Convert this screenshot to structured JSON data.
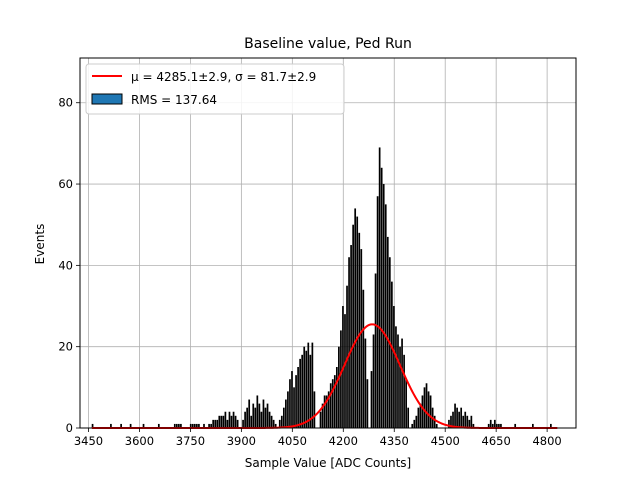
{
  "chart_data": {
    "type": "histogram",
    "title": "Baseline value, Ped Run",
    "xlabel": "Sample Value [ADC Counts]",
    "ylabel": "Events",
    "xlim": [
      3425,
      4885
    ],
    "ylim": [
      0,
      91
    ],
    "xticks": [
      3450,
      3600,
      3750,
      3900,
      4050,
      4200,
      4350,
      4500,
      4650,
      4800
    ],
    "yticks": [
      0,
      20,
      40,
      60,
      80
    ],
    "grid": true,
    "legend_position": "top-left",
    "legend": [
      {
        "label": "μ = 4285.1±2.9, σ = 81.7±2.9",
        "kind": "line",
        "color": "#ff0000"
      },
      {
        "label": "RMS = 137.64",
        "kind": "patch",
        "color": "#1f77b4"
      }
    ],
    "histogram_color": "#000000",
    "fit_color": "#ff0000",
    "fit": {
      "type": "gaussian",
      "mu": 4285.1,
      "sigma": 81.7,
      "amplitude": 25.5,
      "x_range": [
        3460,
        4830
      ]
    },
    "bins": [
      [
        3462,
        1
      ],
      [
        3516,
        1
      ],
      [
        3546,
        1
      ],
      [
        3574,
        1
      ],
      [
        3612,
        1
      ],
      [
        3657,
        1
      ],
      [
        3704,
        1
      ],
      [
        3710,
        1
      ],
      [
        3716,
        1
      ],
      [
        3722,
        1
      ],
      [
        3751,
        1
      ],
      [
        3757,
        1
      ],
      [
        3763,
        1
      ],
      [
        3769,
        1
      ],
      [
        3775,
        1
      ],
      [
        3790,
        1
      ],
      [
        3805,
        1
      ],
      [
        3811,
        1
      ],
      [
        3817,
        2
      ],
      [
        3823,
        2
      ],
      [
        3829,
        2
      ],
      [
        3835,
        3
      ],
      [
        3841,
        3
      ],
      [
        3847,
        3
      ],
      [
        3853,
        4
      ],
      [
        3859,
        2
      ],
      [
        3865,
        4
      ],
      [
        3871,
        3
      ],
      [
        3877,
        4
      ],
      [
        3883,
        3
      ],
      [
        3889,
        2
      ],
      [
        3905,
        2
      ],
      [
        3911,
        4
      ],
      [
        3917,
        5
      ],
      [
        3923,
        7
      ],
      [
        3929,
        3
      ],
      [
        3935,
        6
      ],
      [
        3941,
        5
      ],
      [
        3947,
        8
      ],
      [
        3953,
        6
      ],
      [
        3959,
        4
      ],
      [
        3965,
        7
      ],
      [
        3971,
        5
      ],
      [
        3977,
        6
      ],
      [
        3983,
        4
      ],
      [
        3989,
        3
      ],
      [
        3995,
        2
      ],
      [
        4001,
        1
      ],
      [
        4013,
        2
      ],
      [
        4019,
        3
      ],
      [
        4025,
        5
      ],
      [
        4031,
        7
      ],
      [
        4037,
        9
      ],
      [
        4043,
        12
      ],
      [
        4049,
        14
      ],
      [
        4055,
        10
      ],
      [
        4061,
        13
      ],
      [
        4067,
        15
      ],
      [
        4073,
        17
      ],
      [
        4079,
        18
      ],
      [
        4085,
        20
      ],
      [
        4091,
        19
      ],
      [
        4097,
        21
      ],
      [
        4103,
        18
      ],
      [
        4109,
        21
      ],
      [
        4115,
        9
      ],
      [
        4133,
        4
      ],
      [
        4139,
        6
      ],
      [
        4145,
        8
      ],
      [
        4151,
        8
      ],
      [
        4157,
        9
      ],
      [
        4163,
        11
      ],
      [
        4169,
        12
      ],
      [
        4175,
        13
      ],
      [
        4181,
        15
      ],
      [
        4187,
        20
      ],
      [
        4193,
        24
      ],
      [
        4199,
        30
      ],
      [
        4205,
        28
      ],
      [
        4211,
        35
      ],
      [
        4217,
        42
      ],
      [
        4223,
        45
      ],
      [
        4229,
        50
      ],
      [
        4235,
        54
      ],
      [
        4241,
        52
      ],
      [
        4247,
        48
      ],
      [
        4253,
        44
      ],
      [
        4259,
        34
      ],
      [
        4265,
        22
      ],
      [
        4271,
        12
      ],
      [
        4283,
        14
      ],
      [
        4289,
        23
      ],
      [
        4295,
        38
      ],
      [
        4301,
        57
      ],
      [
        4307,
        69
      ],
      [
        4313,
        64
      ],
      [
        4319,
        60
      ],
      [
        4325,
        55
      ],
      [
        4331,
        47
      ],
      [
        4337,
        42
      ],
      [
        4343,
        36
      ],
      [
        4349,
        30
      ],
      [
        4355,
        25
      ],
      [
        4361,
        23
      ],
      [
        4367,
        20
      ],
      [
        4373,
        22
      ],
      [
        4379,
        18
      ],
      [
        4385,
        12
      ],
      [
        4391,
        5
      ],
      [
        4403,
        1
      ],
      [
        4409,
        2
      ],
      [
        4415,
        3
      ],
      [
        4421,
        5
      ],
      [
        4427,
        6
      ],
      [
        4433,
        8
      ],
      [
        4439,
        10
      ],
      [
        4445,
        11
      ],
      [
        4451,
        9
      ],
      [
        4457,
        8
      ],
      [
        4463,
        5
      ],
      [
        4469,
        3
      ],
      [
        4475,
        1
      ],
      [
        4511,
        2
      ],
      [
        4517,
        3
      ],
      [
        4523,
        4
      ],
      [
        4529,
        6
      ],
      [
        4535,
        5
      ],
      [
        4541,
        4
      ],
      [
        4547,
        5
      ],
      [
        4553,
        3
      ],
      [
        4559,
        4
      ],
      [
        4565,
        3
      ],
      [
        4571,
        2
      ],
      [
        4577,
        3
      ],
      [
        4583,
        1
      ],
      [
        4628,
        1
      ],
      [
        4634,
        2
      ],
      [
        4640,
        1
      ],
      [
        4646,
        2
      ],
      [
        4652,
        1
      ],
      [
        4658,
        1
      ],
      [
        4664,
        1
      ],
      [
        4706,
        1
      ],
      [
        4758,
        1
      ],
      [
        4811,
        1
      ]
    ]
  }
}
